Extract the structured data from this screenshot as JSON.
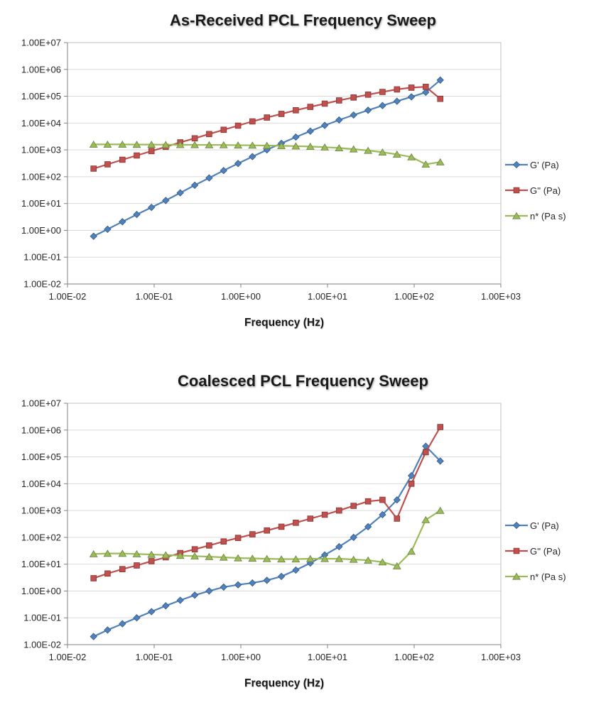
{
  "chart_data": [
    {
      "type": "line",
      "title": "As-Received PCL Frequency Sweep",
      "xlabel": "Frequency (Hz)",
      "x_scale": "log",
      "y_scale": "log",
      "xlim": [
        0.01,
        1000
      ],
      "ylim": [
        0.01,
        10000000
      ],
      "grid": "horizontal",
      "legend_position": "right",
      "x_ticks": [
        "1.00E-02",
        "1.00E-01",
        "1.00E+00",
        "1.00E+01",
        "1.00E+02",
        "1.00E+03"
      ],
      "y_ticks": [
        "1.00E-02",
        "1.00E-01",
        "1.00E+00",
        "1.00E+01",
        "1.00E+02",
        "1.00E+03",
        "1.00E+04",
        "1.00E+05",
        "1.00E+06",
        "1.00E+07"
      ],
      "x": [
        0.02,
        0.029,
        0.043,
        0.063,
        0.093,
        0.136,
        0.2,
        0.294,
        0.431,
        0.633,
        0.929,
        1.36,
        2.0,
        2.94,
        4.31,
        6.33,
        9.29,
        13.6,
        20.0,
        29.4,
        43.1,
        63.3,
        92.9,
        136,
        200
      ],
      "series": [
        {
          "name": "G' (Pa)",
          "color": "#4F81BD",
          "marker": "diamond",
          "values": [
            0.6,
            1.1,
            2.1,
            3.9,
            7.2,
            13,
            25,
            48,
            90,
            170,
            310,
            560,
            1000,
            1750,
            3000,
            5000,
            8200,
            13000,
            20000,
            30000,
            45000,
            65000,
            95000,
            140000,
            400000
          ]
        },
        {
          "name": "G'' (Pa)",
          "color": "#C0504D",
          "marker": "square",
          "values": [
            200,
            290,
            430,
            620,
            900,
            1300,
            1900,
            2700,
            3900,
            5600,
            8000,
            11500,
            16000,
            22000,
            30000,
            40000,
            53000,
            70000,
            90000,
            115000,
            145000,
            180000,
            210000,
            225000,
            80000
          ]
        },
        {
          "name": "n* (Pa s)",
          "color": "#9BBB59",
          "marker": "triangle",
          "values": [
            1600,
            1600,
            1600,
            1580,
            1580,
            1560,
            1550,
            1540,
            1530,
            1520,
            1500,
            1480,
            1450,
            1420,
            1380,
            1330,
            1260,
            1180,
            1070,
            950,
            820,
            680,
            540,
            290,
            350
          ]
        }
      ]
    },
    {
      "type": "line",
      "title": "Coalesced PCL Frequency Sweep",
      "xlabel": "Frequency (Hz)",
      "x_scale": "log",
      "y_scale": "log",
      "xlim": [
        0.01,
        1000
      ],
      "ylim": [
        0.01,
        10000000
      ],
      "grid": "horizontal",
      "legend_position": "right",
      "x_ticks": [
        "1.00E-02",
        "1.00E-01",
        "1.00E+00",
        "1.00E+01",
        "1.00E+02",
        "1.00E+03"
      ],
      "y_ticks": [
        "1.00E-02",
        "1.00E-01",
        "1.00E+00",
        "1.00E+01",
        "1.00E+02",
        "1.00E+03",
        "1.00E+04",
        "1.00E+05",
        "1.00E+06",
        "1.00E+07"
      ],
      "x": [
        0.02,
        0.029,
        0.043,
        0.063,
        0.093,
        0.136,
        0.2,
        0.294,
        0.431,
        0.633,
        0.929,
        1.36,
        2.0,
        2.94,
        4.31,
        6.33,
        9.29,
        13.6,
        20.0,
        29.4,
        43.1,
        63.3,
        92.9,
        136,
        200
      ],
      "series": [
        {
          "name": "G' (Pa)",
          "color": "#4F81BD",
          "marker": "diamond",
          "values": [
            0.02,
            0.035,
            0.06,
            0.1,
            0.17,
            0.28,
            0.45,
            0.7,
            1.0,
            1.4,
            1.7,
            2.0,
            2.5,
            3.5,
            6,
            11,
            22,
            45,
            100,
            250,
            700,
            2500,
            20000,
            250000,
            70000
          ]
        },
        {
          "name": "G'' (Pa)",
          "color": "#C0504D",
          "marker": "square",
          "values": [
            3,
            4.5,
            6.5,
            9,
            13,
            18,
            26,
            36,
            50,
            70,
            95,
            130,
            180,
            250,
            350,
            500,
            700,
            1000,
            1500,
            2200,
            2500,
            500,
            10000,
            150000,
            1300000
          ]
        },
        {
          "name": "n* (Pa s)",
          "color": "#9BBB59",
          "marker": "triangle",
          "values": [
            24,
            25,
            25,
            24,
            23,
            22,
            21,
            20,
            19,
            18,
            17,
            16.5,
            16,
            15.5,
            15.5,
            16,
            16,
            16,
            15,
            14,
            12,
            8.5,
            30,
            450,
            1000
          ]
        }
      ]
    }
  ]
}
